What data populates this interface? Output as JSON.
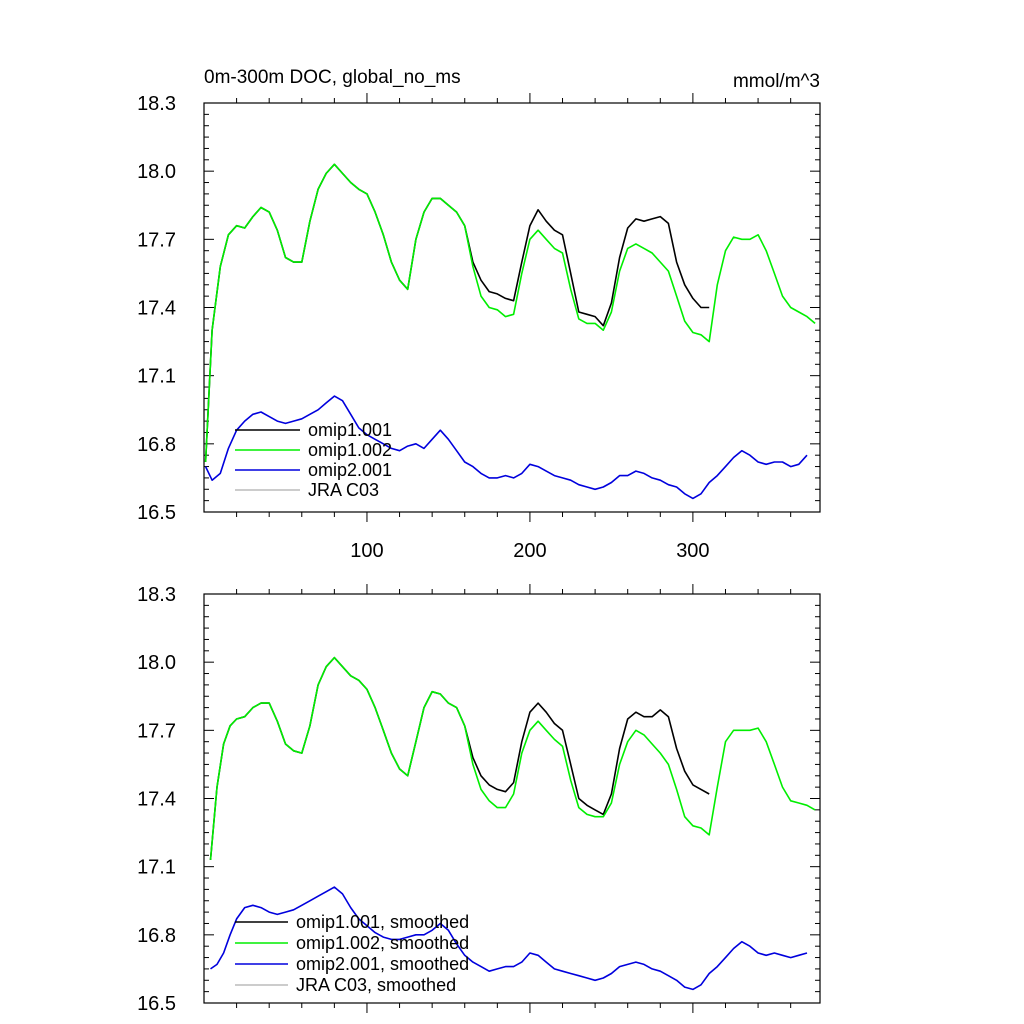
{
  "colors": {
    "omip1_001": "#000000",
    "omip1_002": "#00ee00",
    "omip2_001": "#0000dd",
    "jra_c03": "#bbbbbb"
  },
  "chart_data": [
    {
      "type": "line",
      "title": "0m-300m DOC, global_no_ms",
      "units": "mmol/m^3",
      "xlim": [
        0,
        378
      ],
      "ylim": [
        16.5,
        18.3
      ],
      "yticks": [
        "16.5",
        "16.8",
        "17.1",
        "17.4",
        "17.7",
        "18.0",
        "18.3"
      ],
      "xticks": [
        "100",
        "200",
        "300"
      ],
      "legend": [
        "omip1.001",
        "omip1.002",
        "omip2.001",
        "JRA C03"
      ],
      "series": [
        {
          "name": "omip1.001",
          "color_key": "omip1_001",
          "x": [
            1,
            5,
            10,
            15,
            20,
            25,
            30,
            35,
            40,
            45,
            50,
            55,
            60,
            65,
            70,
            75,
            80,
            85,
            90,
            95,
            100,
            105,
            110,
            115,
            120,
            125,
            130,
            135,
            140,
            145,
            150,
            155,
            160,
            165,
            170,
            175,
            180,
            185,
            190,
            195,
            200,
            205,
            210,
            215,
            220,
            225,
            230,
            235,
            240,
            245,
            250,
            255,
            260,
            265,
            270,
            275,
            280,
            285,
            290,
            295,
            300,
            305,
            310
          ],
          "y": [
            16.72,
            17.3,
            17.58,
            17.72,
            17.76,
            17.75,
            17.8,
            17.84,
            17.82,
            17.74,
            17.62,
            17.6,
            17.6,
            17.78,
            17.92,
            17.99,
            18.03,
            17.99,
            17.95,
            17.92,
            17.9,
            17.82,
            17.72,
            17.6,
            17.52,
            17.48,
            17.7,
            17.82,
            17.88,
            17.88,
            17.85,
            17.82,
            17.76,
            17.6,
            17.52,
            17.47,
            17.46,
            17.44,
            17.43,
            17.6,
            17.76,
            17.83,
            17.78,
            17.74,
            17.72,
            17.55,
            17.38,
            17.37,
            17.36,
            17.32,
            17.42,
            17.62,
            17.75,
            17.79,
            17.78,
            17.79,
            17.8,
            17.77,
            17.6,
            17.5,
            17.44,
            17.4,
            17.4
          ]
        },
        {
          "name": "omip1.002",
          "color_key": "omip1_002",
          "x": [
            1,
            5,
            10,
            15,
            20,
            25,
            30,
            35,
            40,
            45,
            50,
            55,
            60,
            65,
            70,
            75,
            80,
            85,
            90,
            95,
            100,
            105,
            110,
            115,
            120,
            125,
            130,
            135,
            140,
            145,
            150,
            155,
            160,
            165,
            170,
            175,
            180,
            185,
            190,
            195,
            200,
            205,
            210,
            215,
            220,
            225,
            230,
            235,
            240,
            245,
            250,
            255,
            260,
            265,
            270,
            275,
            280,
            285,
            290,
            295,
            300,
            305,
            310,
            315,
            320,
            325,
            330,
            335,
            340,
            345,
            350,
            355,
            360,
            365,
            370,
            375
          ],
          "y": [
            16.72,
            17.3,
            17.58,
            17.72,
            17.76,
            17.75,
            17.8,
            17.84,
            17.82,
            17.74,
            17.62,
            17.6,
            17.6,
            17.78,
            17.92,
            17.99,
            18.03,
            17.99,
            17.95,
            17.92,
            17.9,
            17.82,
            17.72,
            17.6,
            17.52,
            17.48,
            17.7,
            17.82,
            17.88,
            17.88,
            17.85,
            17.82,
            17.76,
            17.58,
            17.45,
            17.4,
            17.39,
            17.36,
            17.37,
            17.55,
            17.7,
            17.74,
            17.7,
            17.66,
            17.64,
            17.48,
            17.35,
            17.33,
            17.33,
            17.3,
            17.38,
            17.56,
            17.66,
            17.68,
            17.66,
            17.64,
            17.6,
            17.56,
            17.45,
            17.34,
            17.29,
            17.28,
            17.25,
            17.5,
            17.65,
            17.71,
            17.7,
            17.7,
            17.72,
            17.65,
            17.55,
            17.45,
            17.4,
            17.38,
            17.36,
            17.33
          ]
        },
        {
          "name": "omip2.001",
          "color_key": "omip2_001",
          "x": [
            1,
            5,
            10,
            15,
            20,
            25,
            30,
            35,
            40,
            45,
            50,
            55,
            60,
            65,
            70,
            75,
            80,
            85,
            90,
            95,
            100,
            105,
            110,
            115,
            120,
            125,
            130,
            135,
            140,
            145,
            150,
            155,
            160,
            165,
            170,
            175,
            180,
            185,
            190,
            195,
            200,
            205,
            210,
            215,
            220,
            225,
            230,
            235,
            240,
            245,
            250,
            255,
            260,
            265,
            270,
            275,
            280,
            285,
            290,
            295,
            300,
            305,
            310,
            315,
            320,
            325,
            330,
            335,
            340,
            345,
            350,
            355,
            360,
            365,
            370
          ],
          "y": [
            16.7,
            16.64,
            16.67,
            16.78,
            16.86,
            16.9,
            16.93,
            16.94,
            16.92,
            16.9,
            16.89,
            16.9,
            16.91,
            16.93,
            16.95,
            16.98,
            17.01,
            16.99,
            16.93,
            16.87,
            16.84,
            16.82,
            16.8,
            16.78,
            16.77,
            16.79,
            16.8,
            16.78,
            16.82,
            16.86,
            16.82,
            16.77,
            16.72,
            16.7,
            16.67,
            16.65,
            16.65,
            16.66,
            16.65,
            16.67,
            16.71,
            16.7,
            16.68,
            16.66,
            16.65,
            16.64,
            16.62,
            16.61,
            16.6,
            16.61,
            16.63,
            16.66,
            16.66,
            16.68,
            16.67,
            16.65,
            16.64,
            16.62,
            16.61,
            16.58,
            16.56,
            16.58,
            16.63,
            16.66,
            16.7,
            16.74,
            16.77,
            16.75,
            16.72,
            16.71,
            16.72,
            16.72,
            16.7,
            16.71,
            16.75
          ]
        },
        {
          "name": "JRA C03",
          "color_key": "jra_c03",
          "x": [],
          "y": []
        }
      ]
    },
    {
      "type": "line",
      "title": "",
      "units": "",
      "xlim": [
        0,
        378
      ],
      "ylim": [
        16.5,
        18.3
      ],
      "yticks": [
        "16.5",
        "16.8",
        "17.1",
        "17.4",
        "17.7",
        "18.0",
        "18.3"
      ],
      "xticks": [],
      "legend": [
        "omip1.001, smoothed",
        "omip1.002, smoothed",
        "omip2.001, smoothed",
        "JRA C03, smoothed"
      ],
      "series": [
        {
          "name": "omip1.001, smoothed",
          "color_key": "omip1_001",
          "x": [
            4,
            8,
            12,
            16,
            20,
            25,
            30,
            35,
            40,
            45,
            50,
            55,
            60,
            65,
            70,
            75,
            80,
            85,
            90,
            95,
            100,
            105,
            110,
            115,
            120,
            125,
            130,
            135,
            140,
            145,
            150,
            155,
            160,
            165,
            170,
            175,
            180,
            185,
            190,
            195,
            200,
            205,
            210,
            215,
            220,
            225,
            230,
            235,
            240,
            245,
            250,
            255,
            260,
            265,
            270,
            275,
            280,
            285,
            290,
            295,
            300,
            305,
            310
          ],
          "y": [
            17.13,
            17.45,
            17.64,
            17.72,
            17.75,
            17.76,
            17.8,
            17.82,
            17.82,
            17.74,
            17.64,
            17.61,
            17.6,
            17.72,
            17.9,
            17.98,
            18.02,
            17.98,
            17.94,
            17.92,
            17.88,
            17.8,
            17.7,
            17.6,
            17.53,
            17.5,
            17.65,
            17.8,
            17.87,
            17.86,
            17.82,
            17.8,
            17.72,
            17.58,
            17.5,
            17.46,
            17.44,
            17.43,
            17.47,
            17.65,
            17.78,
            17.82,
            17.78,
            17.73,
            17.7,
            17.55,
            17.4,
            17.37,
            17.35,
            17.33,
            17.42,
            17.62,
            17.75,
            17.78,
            17.76,
            17.76,
            17.79,
            17.76,
            17.62,
            17.52,
            17.46,
            17.44,
            17.42
          ]
        },
        {
          "name": "omip1.002, smoothed",
          "color_key": "omip1_002",
          "x": [
            4,
            8,
            12,
            16,
            20,
            25,
            30,
            35,
            40,
            45,
            50,
            55,
            60,
            65,
            70,
            75,
            80,
            85,
            90,
            95,
            100,
            105,
            110,
            115,
            120,
            125,
            130,
            135,
            140,
            145,
            150,
            155,
            160,
            165,
            170,
            175,
            180,
            185,
            190,
            195,
            200,
            205,
            210,
            215,
            220,
            225,
            230,
            235,
            240,
            245,
            250,
            255,
            260,
            265,
            270,
            275,
            280,
            285,
            290,
            295,
            300,
            305,
            310,
            315,
            320,
            325,
            330,
            335,
            340,
            345,
            350,
            355,
            360,
            365,
            370,
            375
          ],
          "y": [
            17.13,
            17.45,
            17.64,
            17.72,
            17.75,
            17.76,
            17.8,
            17.82,
            17.82,
            17.74,
            17.64,
            17.61,
            17.6,
            17.72,
            17.9,
            17.98,
            18.02,
            17.98,
            17.94,
            17.92,
            17.88,
            17.8,
            17.7,
            17.6,
            17.53,
            17.5,
            17.65,
            17.8,
            17.87,
            17.86,
            17.82,
            17.8,
            17.72,
            17.55,
            17.44,
            17.39,
            17.36,
            17.36,
            17.42,
            17.6,
            17.7,
            17.74,
            17.7,
            17.66,
            17.63,
            17.48,
            17.36,
            17.33,
            17.32,
            17.32,
            17.38,
            17.55,
            17.65,
            17.7,
            17.68,
            17.64,
            17.6,
            17.55,
            17.44,
            17.32,
            17.28,
            17.27,
            17.24,
            17.45,
            17.65,
            17.7,
            17.7,
            17.7,
            17.71,
            17.65,
            17.55,
            17.45,
            17.39,
            17.38,
            17.37,
            17.35
          ]
        },
        {
          "name": "omip2.001, smoothed",
          "color_key": "omip2_001",
          "x": [
            4,
            8,
            12,
            16,
            20,
            25,
            30,
            35,
            40,
            45,
            50,
            55,
            60,
            65,
            70,
            75,
            80,
            85,
            90,
            95,
            100,
            105,
            110,
            115,
            120,
            125,
            130,
            135,
            140,
            145,
            150,
            155,
            160,
            165,
            170,
            175,
            180,
            185,
            190,
            195,
            200,
            205,
            210,
            215,
            220,
            225,
            230,
            235,
            240,
            245,
            250,
            255,
            260,
            265,
            270,
            275,
            280,
            285,
            290,
            295,
            300,
            305,
            310,
            315,
            320,
            325,
            330,
            335,
            340,
            345,
            350,
            355,
            360,
            365,
            370
          ],
          "y": [
            16.65,
            16.67,
            16.72,
            16.8,
            16.87,
            16.92,
            16.93,
            16.92,
            16.9,
            16.89,
            16.9,
            16.91,
            16.93,
            16.95,
            16.97,
            16.99,
            17.01,
            16.98,
            16.92,
            16.87,
            16.84,
            16.81,
            16.79,
            16.78,
            16.78,
            16.79,
            16.8,
            16.8,
            16.82,
            16.85,
            16.82,
            16.76,
            16.71,
            16.68,
            16.66,
            16.64,
            16.65,
            16.66,
            16.66,
            16.68,
            16.72,
            16.71,
            16.68,
            16.65,
            16.64,
            16.63,
            16.62,
            16.61,
            16.6,
            16.61,
            16.63,
            16.66,
            16.67,
            16.68,
            16.67,
            16.65,
            16.64,
            16.62,
            16.6,
            16.57,
            16.56,
            16.58,
            16.63,
            16.66,
            16.7,
            16.74,
            16.77,
            16.75,
            16.72,
            16.71,
            16.72,
            16.71,
            16.7,
            16.71,
            16.72
          ]
        },
        {
          "name": "JRA C03, smoothed",
          "color_key": "jra_c03",
          "x": [],
          "y": []
        }
      ]
    }
  ]
}
